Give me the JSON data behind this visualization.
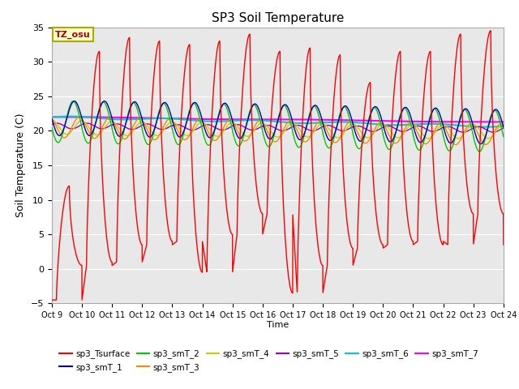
{
  "title": "SP3 Soil Temperature",
  "xlabel": "Time",
  "ylabel": "Soil Temperature (C)",
  "ylim": [
    -5,
    35
  ],
  "ytick_values": [
    -5,
    0,
    5,
    10,
    15,
    20,
    25,
    30,
    35
  ],
  "tz_label": "TZ_osu",
  "background_color": "#e8e8e8",
  "plot_bg": "#e8e8e8",
  "grid_color": "#ffffff",
  "series": {
    "sp3_Tsurface": {
      "color": "#ff0000",
      "lw": 1.0
    },
    "sp3_smT_1": {
      "color": "#0000bb",
      "lw": 1.0
    },
    "sp3_smT_2": {
      "color": "#00cc00",
      "lw": 1.0
    },
    "sp3_smT_3": {
      "color": "#ff8800",
      "lw": 1.0
    },
    "sp3_smT_4": {
      "color": "#cccc00",
      "lw": 1.0
    },
    "sp3_smT_5": {
      "color": "#9900cc",
      "lw": 1.0
    },
    "sp3_smT_6": {
      "color": "#00cccc",
      "lw": 1.5
    },
    "sp3_smT_7": {
      "color": "#ff00ff",
      "lw": 1.5
    }
  },
  "xtick_labels": [
    "Oct 9",
    "Oct 10",
    "Oct 11",
    "Oct 12",
    "Oct 13",
    "Oct 14",
    "Oct 15",
    "Oct 16",
    "Oct 17",
    "Oct 18",
    "Oct 19",
    "Oct 20",
    "Oct 21",
    "Oct 22",
    "Oct 23",
    "Oct 24"
  ],
  "legend_order": [
    "sp3_Tsurface",
    "sp3_smT_1",
    "sp3_smT_2",
    "sp3_smT_3",
    "sp3_smT_4",
    "sp3_smT_5",
    "sp3_smT_6",
    "sp3_smT_7"
  ]
}
